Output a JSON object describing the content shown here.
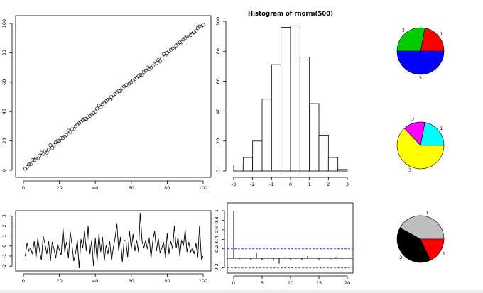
{
  "chart_data": [
    {
      "type": "scatter",
      "x_range": [
        1,
        100
      ],
      "x": [
        1,
        2,
        3,
        4,
        5,
        6,
        7,
        8,
        9,
        10,
        11,
        12,
        13,
        14,
        15,
        16,
        17,
        18,
        19,
        20,
        21,
        22,
        23,
        24,
        25,
        26,
        27,
        28,
        29,
        30,
        31,
        32,
        33,
        34,
        35,
        36,
        37,
        38,
        39,
        40,
        41,
        42,
        43,
        44,
        45,
        46,
        47,
        48,
        49,
        50,
        51,
        52,
        53,
        54,
        55,
        56,
        57,
        58,
        59,
        60,
        61,
        62,
        63,
        64,
        65,
        66,
        67,
        68,
        69,
        70,
        71,
        72,
        73,
        74,
        75,
        76,
        77,
        78,
        79,
        80,
        81,
        82,
        83,
        84,
        85,
        86,
        87,
        88,
        89,
        90,
        91,
        92,
        93,
        94,
        95,
        96,
        97,
        98,
        99,
        100
      ],
      "y": [
        1,
        2,
        4,
        4,
        7,
        7,
        8,
        8,
        10,
        12,
        11,
        13,
        12,
        14,
        17,
        15,
        17,
        19,
        20,
        20,
        22,
        22,
        23,
        24,
        27,
        26,
        28,
        28,
        30,
        31,
        32,
        33,
        34,
        35,
        35,
        36,
        37,
        38,
        39,
        40,
        42,
        44,
        43,
        45,
        46,
        47,
        48,
        48,
        50,
        51,
        52,
        53,
        54,
        54,
        56,
        57,
        58,
        58,
        59,
        60,
        61,
        62,
        63,
        64,
        65,
        65,
        67,
        68,
        70,
        69,
        70,
        71,
        74,
        73,
        75,
        74,
        76,
        79,
        78,
        80,
        81,
        82,
        83,
        83,
        85,
        86,
        87,
        87,
        89,
        90,
        91,
        91,
        92,
        93,
        94,
        95,
        97,
        98,
        98,
        99
      ],
      "xticks": [
        0,
        20,
        40,
        60,
        80,
        100
      ],
      "yticks": [
        0,
        20,
        40,
        60,
        80,
        100
      ],
      "xlim": [
        0,
        100
      ],
      "ylim": [
        0,
        100
      ],
      "grid": false
    },
    {
      "type": "bar",
      "title": "Histogram of rnorm(500)",
      "bin_edges": [
        -3,
        -2.5,
        -2,
        -1.5,
        -1,
        -0.5,
        0,
        0.5,
        1,
        1.5,
        2,
        2.5,
        3
      ],
      "values": [
        4,
        9,
        20,
        48,
        71,
        96,
        97,
        76,
        45,
        24,
        9,
        1
      ],
      "xticks": [
        -3,
        -2,
        -1,
        0,
        1,
        2,
        3
      ],
      "yticks": [
        0,
        20,
        40,
        60,
        80,
        100
      ],
      "xlim": [
        -3,
        3
      ],
      "ylim": [
        0,
        100
      ],
      "grid": false
    },
    {
      "type": "pie",
      "labels": [
        "1",
        "2",
        "3"
      ],
      "values": [
        0.22,
        0.28,
        0.5
      ],
      "colors": [
        "#ff0000",
        "#00cd00",
        "#0000ff"
      ],
      "legend": "none"
    },
    {
      "type": "pie",
      "labels": [
        "1",
        "2",
        "3"
      ],
      "values": [
        0.22,
        0.15,
        0.63
      ],
      "colors": [
        "#00ffff",
        "#ff00ff",
        "#ffff00"
      ],
      "legend": "none"
    },
    {
      "type": "line",
      "x_range": [
        1,
        100
      ],
      "y": [
        -1.0,
        0.3,
        -0.5,
        -0.2,
        -0.8,
        0.5,
        -1.2,
        0.8,
        -0.5,
        -1.4,
        1.0,
        0.2,
        -0.8,
        0.5,
        -1.5,
        0.4,
        -0.3,
        -1.2,
        0.2,
        -0.4,
        -0.9,
        1.8,
        -0.6,
        0.4,
        -1.2,
        1.4,
        0.2,
        -1.5,
        -0.7,
        0.6,
        -2.2,
        0.7,
        -0.2,
        1.5,
        -0.5,
        2.0,
        -0.8,
        0.6,
        -2.0,
        0.8,
        -1.5,
        1.2,
        -0.6,
        0.9,
        -1.5,
        0.1,
        -0.8,
        0.5,
        -1.4,
        -0.2,
        0.8,
        2.2,
        -0.5,
        0.9,
        -1.6,
        0.6,
        0.5,
        -1.1,
        1.5,
        -0.3,
        1.2,
        -0.5,
        0.6,
        -0.6,
        3.3,
        0.5,
        -0.2,
        0.6,
        -0.3,
        0.8,
        -1.2,
        0.6,
        1.5,
        -0.5,
        0.8,
        -0.7,
        -0.2,
        0.4,
        -1.2,
        1.3,
        -0.8,
        0.5,
        -0.3,
        2.0,
        -0.2,
        0.9,
        -1.0,
        0.6,
        0.0,
        1.6,
        -0.6,
        0.4,
        -0.6,
        -0.2,
        -0.8,
        0.3,
        -1.1,
        2.0,
        -1.3,
        -1.0
      ],
      "xticks": [
        0,
        20,
        40,
        60,
        80,
        100
      ],
      "yticks": [
        -2,
        -1,
        0,
        1,
        2,
        3
      ],
      "xlim": [
        0,
        100
      ],
      "ylim": [
        -2.2,
        3.3
      ],
      "grid": false
    },
    {
      "type": "bar",
      "lags": [
        0,
        1,
        2,
        3,
        4,
        5,
        6,
        7,
        8,
        9,
        10,
        11,
        12,
        13,
        14,
        15,
        16,
        17,
        18,
        19,
        20
      ],
      "values": [
        1.0,
        -0.02,
        0.01,
        -0.03,
        0.12,
        -0.04,
        0.02,
        -0.05,
        -0.11,
        0.02,
        -0.03,
        0.01,
        -0.04,
        0.05,
        0.02,
        -0.03,
        0.01,
        -0.02,
        0.03,
        -0.01,
        0.02
      ],
      "conf_limit": 0.2,
      "xticks": [
        0,
        5,
        10,
        15,
        20
      ],
      "yticks": [
        -0.2,
        0.2,
        0.4,
        0.6,
        0.8,
        1.0
      ],
      "xlim": [
        0,
        20
      ],
      "ylim": [
        -0.25,
        1.0
      ],
      "grid": false
    },
    {
      "type": "pie",
      "labels": [
        "1",
        "2",
        "3"
      ],
      "values": [
        0.42,
        0.4,
        0.18
      ],
      "colors": [
        "#bebebe",
        "#000000",
        "#ff0000"
      ],
      "legend": "none"
    }
  ]
}
